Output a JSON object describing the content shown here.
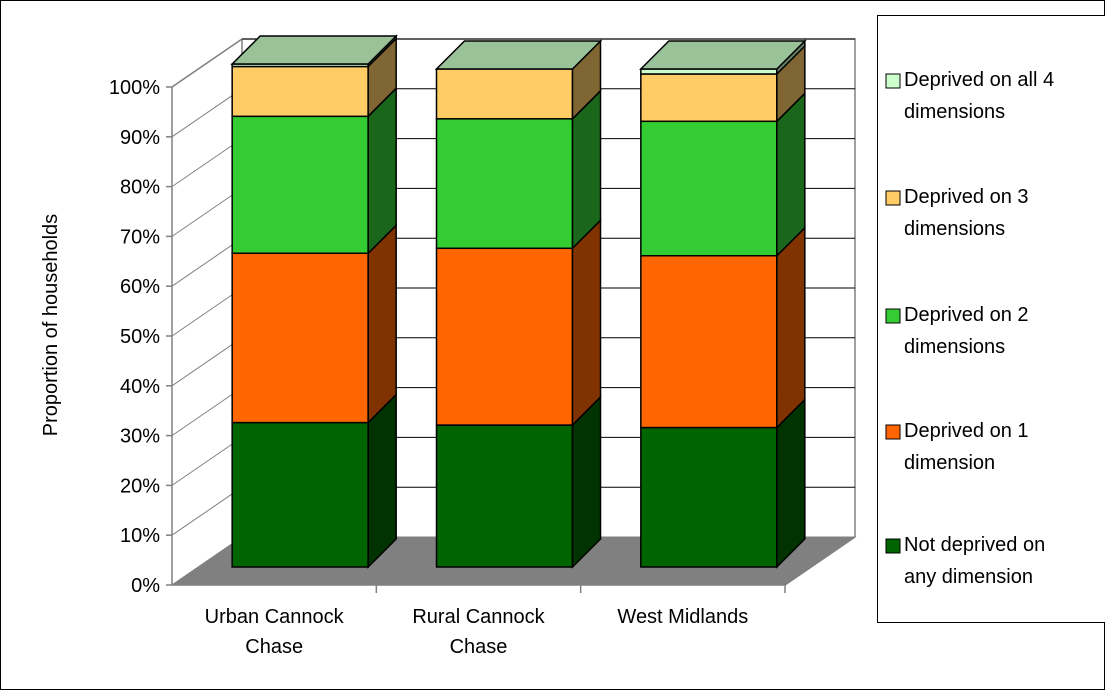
{
  "chart_data": {
    "type": "bar",
    "stacked": true,
    "three_d": true,
    "title": "",
    "xlabel": "",
    "ylabel": "Proportion of households",
    "ylim": [
      0,
      1
    ],
    "y_ticks": [
      "0%",
      "10%",
      "20%",
      "30%",
      "40%",
      "50%",
      "60%",
      "70%",
      "80%",
      "90%",
      "100%"
    ],
    "categories": [
      [
        "Urban Cannock",
        "Chase"
      ],
      [
        "Rural Cannock",
        "Chase"
      ],
      [
        "West Midlands"
      ]
    ],
    "series": [
      {
        "name": "Not deprived on any dimension",
        "legend_lines": [
          "Not deprived on",
          "any dimension"
        ],
        "values": [
          0.29,
          0.285,
          0.28
        ],
        "color": "#006400",
        "side_color": "#003300",
        "top_color": "#339933"
      },
      {
        "name": "Deprived on 1 dimension",
        "legend_lines": [
          "Deprived on 1",
          "dimension"
        ],
        "values": [
          0.34,
          0.355,
          0.345
        ],
        "color": "#ff6600",
        "side_color": "#803300",
        "top_color": "#ff9955"
      },
      {
        "name": "Deprived on 2 dimensions",
        "legend_lines": [
          "Deprived on 2",
          "dimensions"
        ],
        "values": [
          0.275,
          0.26,
          0.27
        ],
        "color": "#33cc33",
        "side_color": "#1a661a",
        "top_color": "#77dd77"
      },
      {
        "name": "Deprived on 3 dimensions",
        "legend_lines": [
          "Deprived on 3",
          "dimensions"
        ],
        "values": [
          0.1,
          0.1,
          0.095
        ],
        "color": "#ffcc66",
        "side_color": "#806633",
        "top_color": "#ffe0a0"
      },
      {
        "name": "Deprived on all 4 dimensions",
        "legend_lines": [
          "Deprived on all 4",
          "dimensions"
        ],
        "values": [
          0.005,
          0.0,
          0.01
        ],
        "color": "#ccffcc",
        "side_color": "#668066",
        "top_color": "#e6ffe6"
      }
    ],
    "grid": true,
    "legend_position": "right",
    "colors": {
      "wall": "#ffffff",
      "floor": "#808080",
      "axis": "#808080",
      "top_face": "#99c299"
    }
  }
}
